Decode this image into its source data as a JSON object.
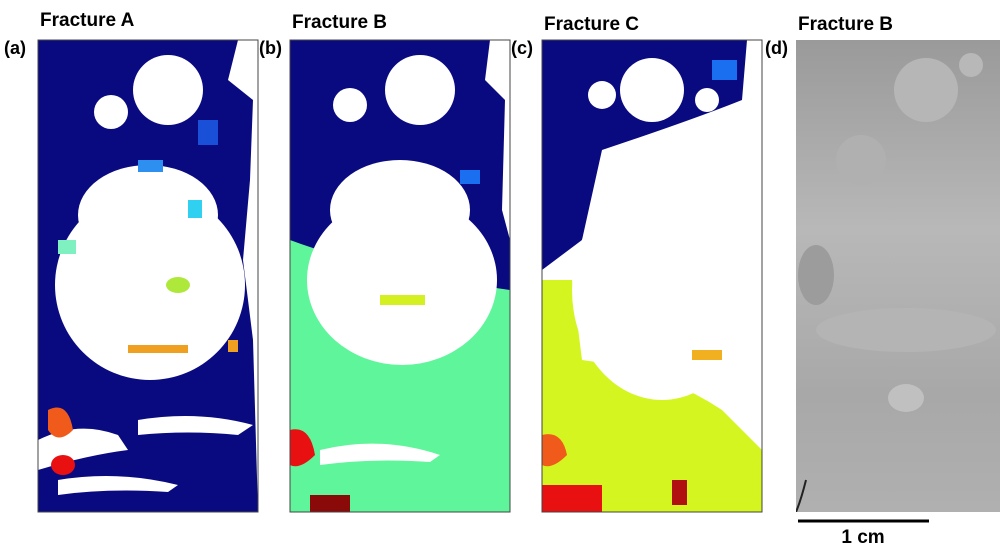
{
  "panels": [
    {
      "label": "(a)",
      "title": "Fracture A"
    },
    {
      "label": "(b)",
      "title": "Fracture B"
    },
    {
      "label": "(c)",
      "title": "Fracture C"
    },
    {
      "label": "(d)",
      "title": "Fracture B"
    }
  ],
  "scale_bar": {
    "label": "1 cm"
  }
}
